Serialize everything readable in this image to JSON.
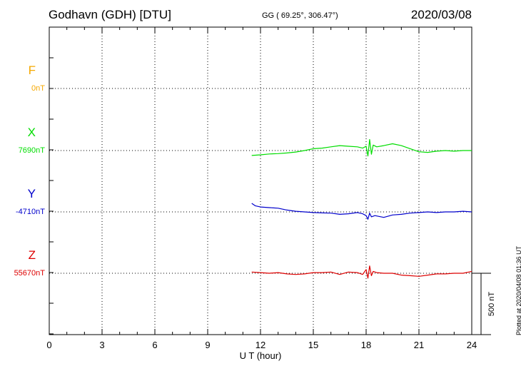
{
  "header": {
    "station": "Godhavn (GDH)  [DTU]",
    "coords": "GG ( 69.25°, 306.47°)",
    "date": "2020/03/08"
  },
  "footer_note": "Plotted at 2020/04/08 01:36 UT",
  "chart_data": {
    "type": "line",
    "title": "Godhavn (GDH)  [DTU]",
    "xlabel": "U T (hour)",
    "xlim": [
      0,
      24
    ],
    "xticks": [
      "0",
      "3",
      "6",
      "9",
      "12",
      "15",
      "18",
      "21",
      "24"
    ],
    "grid": true,
    "scale_bar_label": "500 nT",
    "scale_bar_value": 500,
    "series": [
      {
        "name": "F",
        "baseline": "0nT",
        "color": "#f5a800",
        "x": [],
        "y": []
      },
      {
        "name": "X",
        "baseline": "7690nT",
        "color": "#00dd00",
        "x": [
          11.5,
          12.0,
          12.5,
          13.0,
          13.5,
          14.0,
          14.5,
          15.0,
          15.5,
          16.0,
          16.5,
          17.0,
          17.5,
          17.8,
          18.0,
          18.1,
          18.2,
          18.3,
          18.4,
          18.6,
          19.0,
          19.5,
          20.0,
          20.5,
          21.0,
          21.5,
          22.0,
          22.5,
          23.0,
          23.5,
          24.0
        ],
        "y": [
          -40,
          -35,
          -28,
          -25,
          -20,
          -12,
          0,
          15,
          20,
          30,
          40,
          35,
          30,
          20,
          35,
          -45,
          90,
          -30,
          45,
          30,
          40,
          55,
          40,
          15,
          -10,
          -15,
          -5,
          0,
          -5,
          0,
          0
        ]
      },
      {
        "name": "Y",
        "baseline": "-4710nT",
        "color": "#0000cc",
        "x": [
          11.5,
          11.7,
          12.0,
          12.5,
          13.0,
          13.5,
          14.0,
          14.5,
          15.0,
          15.5,
          16.0,
          16.5,
          17.0,
          17.5,
          17.8,
          18.0,
          18.1,
          18.2,
          18.3,
          18.5,
          19.0,
          19.5,
          20.0,
          20.5,
          21.0,
          21.5,
          22.0,
          22.5,
          23.0,
          23.5,
          24.0
        ],
        "y": [
          70,
          50,
          40,
          35,
          30,
          15,
          5,
          0,
          -5,
          -8,
          -10,
          -20,
          -15,
          -5,
          -15,
          -30,
          -60,
          -10,
          -40,
          -30,
          -45,
          -25,
          -20,
          -10,
          -5,
          0,
          -5,
          0,
          0,
          5,
          0
        ]
      },
      {
        "name": "Z",
        "baseline": "55670nT",
        "color": "#dd0000",
        "x": [
          11.5,
          12.0,
          12.5,
          13.0,
          13.5,
          14.0,
          14.5,
          15.0,
          15.5,
          16.0,
          16.5,
          17.0,
          17.5,
          17.8,
          18.0,
          18.1,
          18.2,
          18.3,
          18.4,
          18.6,
          19.0,
          19.5,
          20.0,
          20.5,
          21.0,
          21.5,
          22.0,
          22.5,
          23.0,
          23.5,
          24.0
        ],
        "y": [
          10,
          5,
          0,
          5,
          -5,
          -10,
          -5,
          5,
          5,
          10,
          -10,
          10,
          5,
          -10,
          30,
          -40,
          60,
          -20,
          15,
          5,
          0,
          0,
          -15,
          -20,
          -25,
          -15,
          -5,
          -5,
          0,
          0,
          15
        ]
      }
    ]
  }
}
